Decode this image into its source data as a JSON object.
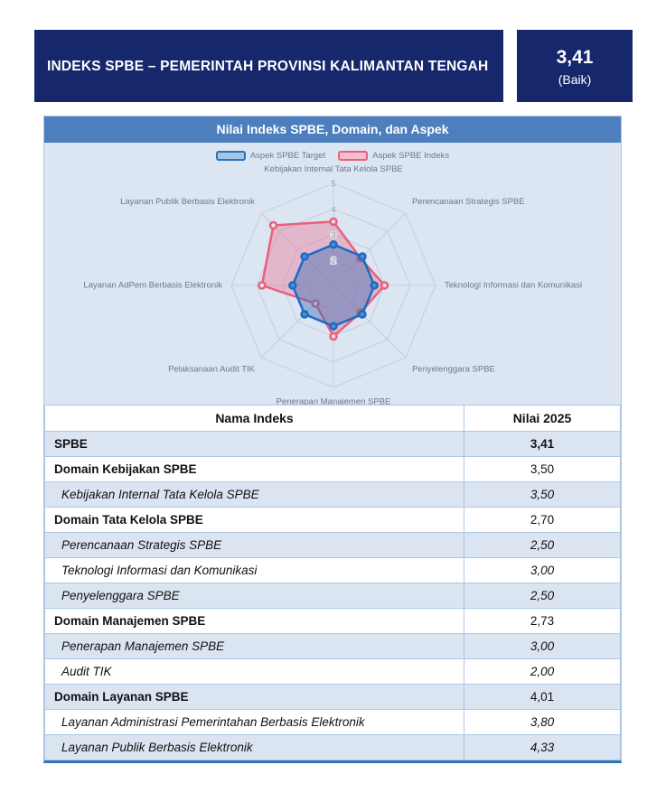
{
  "header": {
    "title": "INDEKS SPBE – PEMERINTAH PROVINSI KALIMANTAN TENGAH",
    "score": "3,41",
    "score_qualifier": "(Baik)"
  },
  "chart": {
    "title": "Nilai Indeks SPBE, Domain, dan Aspek",
    "legend": [
      {
        "label": "Aspek SPBE Target"
      },
      {
        "label": "Aspek SPBE Indeks"
      }
    ]
  },
  "chart_data": {
    "type": "radar",
    "title": "Nilai Indeks SPBE, Domain, dan Aspek",
    "categories": [
      "Kebijakan Internal Tata Kelola SPBE",
      "Perencanaan Strategis SPBE",
      "Teknologi Informasi dan Komunikasi",
      "Penyelenggara SPBE",
      "Penerapan Manajemen SPBE",
      "Pelaksanaan Audit TIK",
      "Layanan AdPem Berbasis Elektronik",
      "Layanan Publik Berbasis Elektronik"
    ],
    "series": [
      {
        "name": "Aspek SPBE Target",
        "values": [
          2.6,
          2.6,
          2.6,
          2.6,
          2.6,
          2.6,
          2.6,
          2.6
        ]
      },
      {
        "name": "Aspek SPBE Indeks",
        "values": [
          3.5,
          2.5,
          3.0,
          2.5,
          3.0,
          2.0,
          3.8,
          4.33
        ]
      }
    ],
    "scale": {
      "min": 1,
      "max": 5,
      "ticks": [
        2,
        3,
        4,
        5
      ]
    },
    "legend_position": "top",
    "grid": true
  },
  "colors": {
    "navy": "#16276b",
    "bar_blue": "#4d7fbe",
    "panel_bg": "#dce5f2",
    "grid": "#c5cdda",
    "axis_label": "#6f7886",
    "tick_label": "#8d939e",
    "target_stroke": "#1e6ac1",
    "target_fill": "rgba(62,112,184,0.45)",
    "target_marker_fill": "#4f8fd0",
    "indeks_stroke": "#ea5f7d",
    "indeks_fill": "rgba(238,116,144,0.40)",
    "indeks_marker_fill": "#f6dce3",
    "row_shade": "#dbe5f2",
    "table_border": "#aec6e4",
    "card_bottom": "#2e74b8"
  },
  "table": {
    "columns": [
      "Nama Indeks",
      "Nilai 2025"
    ],
    "rows": [
      {
        "name": "SPBE",
        "value": "3,41",
        "kind": "total"
      },
      {
        "name": "Domain Kebijakan SPBE",
        "value": "3,50",
        "kind": "domain"
      },
      {
        "name": "Kebijakan Internal Tata Kelola SPBE",
        "value": "3,50",
        "kind": "aspect"
      },
      {
        "name": "Domain Tata Kelola SPBE",
        "value": "2,70",
        "kind": "domain"
      },
      {
        "name": "Perencanaan Strategis SPBE",
        "value": "2,50",
        "kind": "aspect"
      },
      {
        "name": "Teknologi Informasi dan Komunikasi",
        "value": "3,00",
        "kind": "aspect"
      },
      {
        "name": "Penyelenggara SPBE",
        "value": "2,50",
        "kind": "aspect"
      },
      {
        "name": "Domain Manajemen SPBE",
        "value": "2,73",
        "kind": "domain"
      },
      {
        "name": "Penerapan Manajemen SPBE",
        "value": "3,00",
        "kind": "aspect"
      },
      {
        "name": "Audit TIK",
        "value": "2,00",
        "kind": "aspect"
      },
      {
        "name": "Domain Layanan SPBE",
        "value": "4,01",
        "kind": "domain"
      },
      {
        "name": "Layanan Administrasi Pemerintahan Berbasis Elektronik",
        "value": "3,80",
        "kind": "aspect"
      },
      {
        "name": "Layanan Publik Berbasis Elektronik",
        "value": "4,33",
        "kind": "aspect"
      }
    ]
  }
}
